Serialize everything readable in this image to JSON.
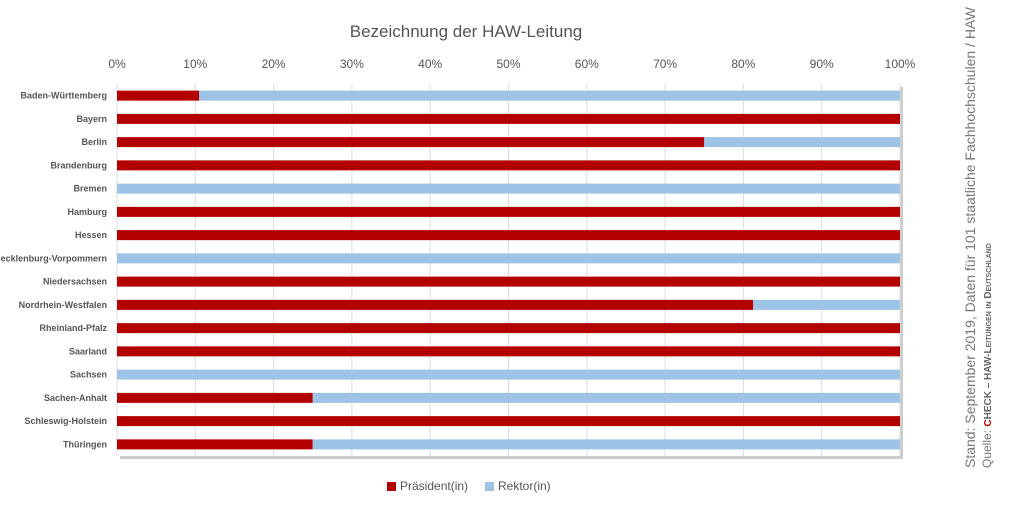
{
  "chart_data": {
    "type": "bar",
    "orientation": "horizontal",
    "stacked": true,
    "title": "Bezeichnung der HAW-Leitung",
    "xlim": [
      0,
      100
    ],
    "xticks": [
      "0%",
      "10%",
      "20%",
      "30%",
      "40%",
      "50%",
      "60%",
      "70%",
      "80%",
      "90%",
      "100%"
    ],
    "categories": [
      "Baden-Württemberg",
      "Bayern",
      "Berlin",
      "Brandenburg",
      "Bremen",
      "Hamburg",
      "Hessen",
      "Mecklenburg-Vorpommern",
      "Niedersachsen",
      "Nordrhein-Westfalen",
      "Rheinland-Pfalz",
      "Saarland",
      "Sachsen",
      "Sachen-Anhalt",
      "Schleswig-Holstein",
      "Thüringen"
    ],
    "series": [
      {
        "name": "Präsident(in)",
        "color": "#b30000",
        "values": [
          10.5,
          100,
          75,
          100,
          0,
          100,
          100,
          0,
          100,
          81.25,
          100,
          100,
          0,
          25,
          100,
          25
        ]
      },
      {
        "name": "Rektor(in)",
        "color": "#9dc3e6",
        "values": [
          89.5,
          0,
          25,
          0,
          100,
          0,
          0,
          100,
          0,
          18.75,
          0,
          0,
          100,
          75,
          0,
          75
        ]
      }
    ],
    "legend": "bottom",
    "grid": true
  },
  "source": {
    "stand": "Stand: September 2019, Daten für 101 staatliche Fachhochschulen / HAW",
    "quelle_prefix": "Quelle: ",
    "brand_c": "C",
    "brand_rest": "HECK – HAW-Leitungen in Deutschland"
  }
}
